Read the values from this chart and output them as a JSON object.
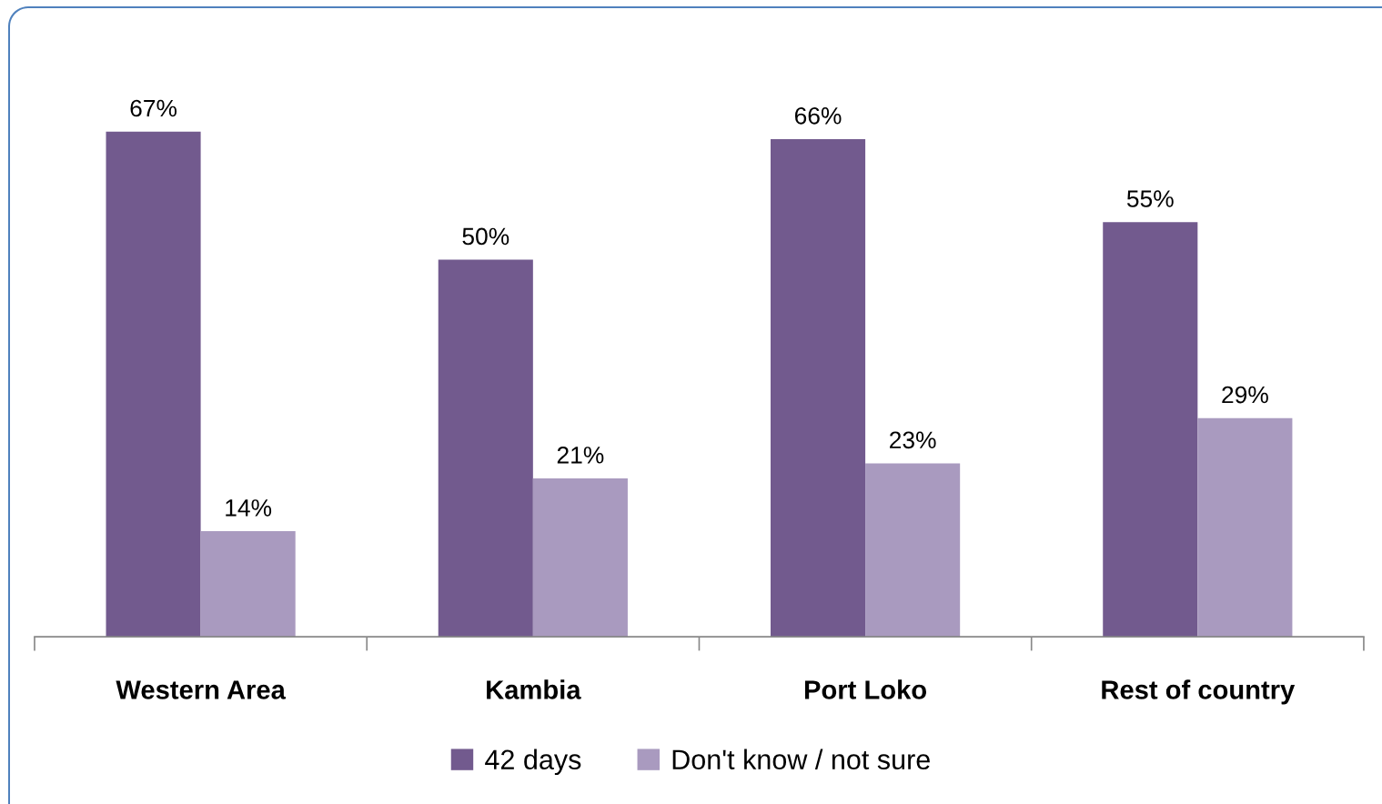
{
  "chart_data": {
    "type": "bar",
    "categories": [
      "Western Area",
      "Kambia",
      "Port Loko",
      "Rest of country"
    ],
    "series": [
      {
        "name": "42 days",
        "color": "#725a8e",
        "values": [
          67,
          50,
          66,
          55
        ],
        "value_labels": [
          "67%",
          "50%",
          "66%",
          "55%"
        ]
      },
      {
        "name": "Don't know / not sure",
        "color": "#a99abf",
        "values": [
          14,
          21,
          23,
          29
        ],
        "value_labels": [
          "14%",
          "21%",
          "23%",
          "29%"
        ]
      }
    ],
    "tick_labels": "x",
    "grid": false,
    "legend": "bottom"
  }
}
